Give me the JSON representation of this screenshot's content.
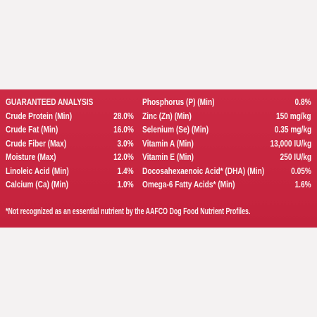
{
  "panel": {
    "title": "GUARANTEED ANALYSIS",
    "left_rows": [
      {
        "label": "Crude Protein (Min)",
        "value": "28.0%"
      },
      {
        "label": "Crude Fat (Min)",
        "value": "16.0%"
      },
      {
        "label": "Crude Fiber (Max)",
        "value": "3.0%"
      },
      {
        "label": "Moisture (Max)",
        "value": "12.0%"
      },
      {
        "label": "Linoleic Acid (Min)",
        "value": "1.4%"
      },
      {
        "label": "Calcium (Ca) (Min)",
        "value": "1.0%"
      }
    ],
    "right_rows": [
      {
        "label": "Phosphorus (P) (Min)",
        "value": "0.8%"
      },
      {
        "label": "Zinc (Zn) (Min)",
        "value": "150 mg/kg"
      },
      {
        "label": "Selenium (Se) (Min)",
        "value": "0.35 mg/kg"
      },
      {
        "label": "Vitamin A (Min)",
        "value": "13,000 IU/kg"
      },
      {
        "label": "Vitamin E (Min)",
        "value": "250 IU/kg"
      },
      {
        "label": "Docosahexaenoic Acid* (DHA) (Min)",
        "value": "0.05%"
      },
      {
        "label": "Omega-6 Fatty Acids* (Min)",
        "value": "1.6%"
      }
    ],
    "footnote": "*Not recognized as an essential nutrient by the AAFCO Dog Food Nutrient Profiles."
  }
}
